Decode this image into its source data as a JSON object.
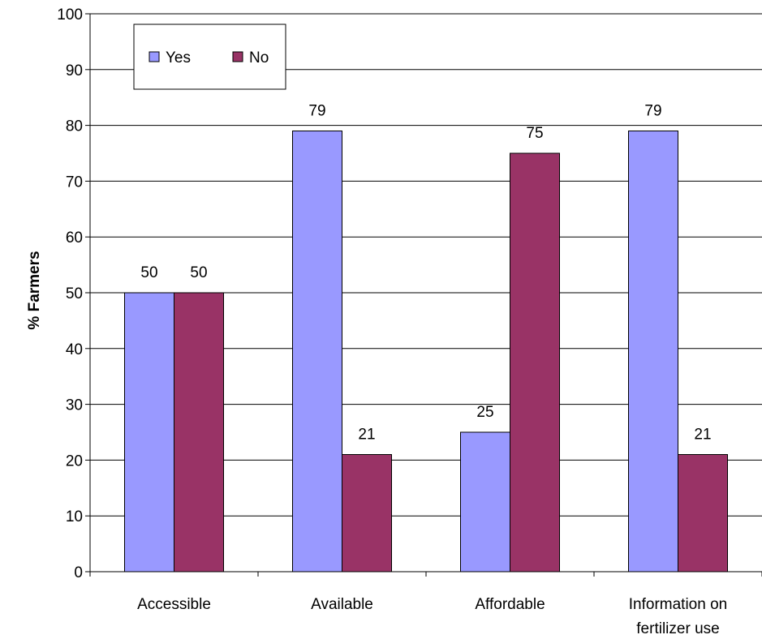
{
  "chart_data": {
    "type": "bar",
    "title": "",
    "xlabel": "",
    "ylabel": "% Farmers",
    "ylim": [
      0,
      100
    ],
    "yticks": [
      0,
      10,
      20,
      30,
      40,
      50,
      60,
      70,
      80,
      90,
      100
    ],
    "grid": true,
    "legend_position": "top-left",
    "categories": [
      "Accessible",
      "Available",
      "Affordable",
      "Information on fertilizer use"
    ],
    "category_lines": [
      [
        "Accessible"
      ],
      [
        "Available"
      ],
      [
        "Affordable"
      ],
      [
        "Information on",
        "fertilizer use"
      ]
    ],
    "series": [
      {
        "name": "Yes",
        "color": "#9999ff",
        "values": [
          50,
          79,
          25,
          79
        ]
      },
      {
        "name": "No",
        "color": "#993366",
        "values": [
          50,
          21,
          75,
          21
        ]
      }
    ]
  }
}
